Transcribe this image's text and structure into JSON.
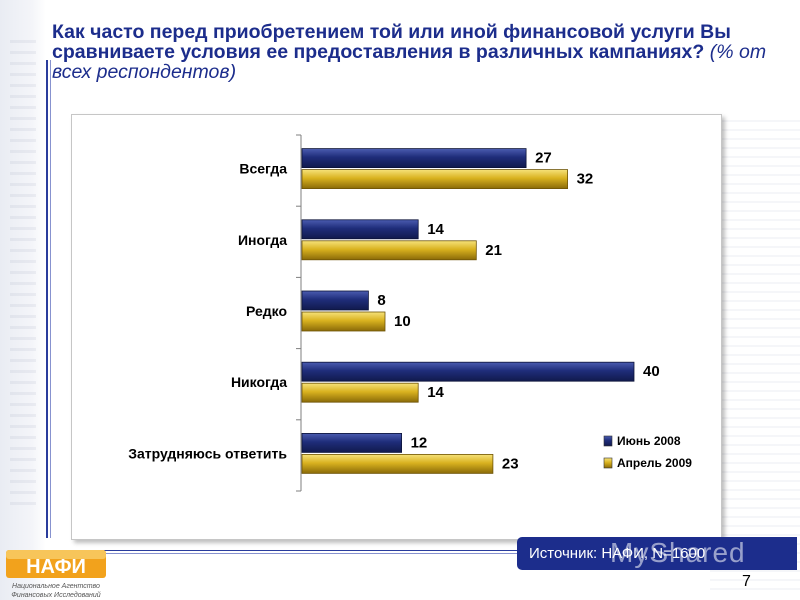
{
  "slide": {
    "title_main": "Как часто перед приобретением той или иной финансовой услуги Вы сравниваете условия ее предоставления в различных кампаниях?",
    "title_sub": "(% от всех респондентов)",
    "source": "Источник: НАФИ, N=1600",
    "watermark": "MyShared",
    "page_number": "7",
    "logo": {
      "name": "НАФИ",
      "caption_line1": "Национальное Агентство",
      "caption_line2": "Финансовых Исследований"
    }
  },
  "chart_data": {
    "type": "bar",
    "orientation": "horizontal",
    "categories": [
      "Всегда",
      "Иногда",
      "Редко",
      "Никогда",
      "Затрудняюсь ответить"
    ],
    "series": [
      {
        "name": "Июнь 2008",
        "values": [
          27,
          14,
          8,
          40,
          12
        ],
        "color": "#1f2d7a"
      },
      {
        "name": "Апрель 2009",
        "values": [
          32,
          21,
          10,
          14,
          23
        ],
        "color": "#d9b21f"
      }
    ],
    "xlim": [
      0,
      40
    ],
    "grid": false,
    "legend_position": "bottom-right",
    "data_labels": true
  }
}
